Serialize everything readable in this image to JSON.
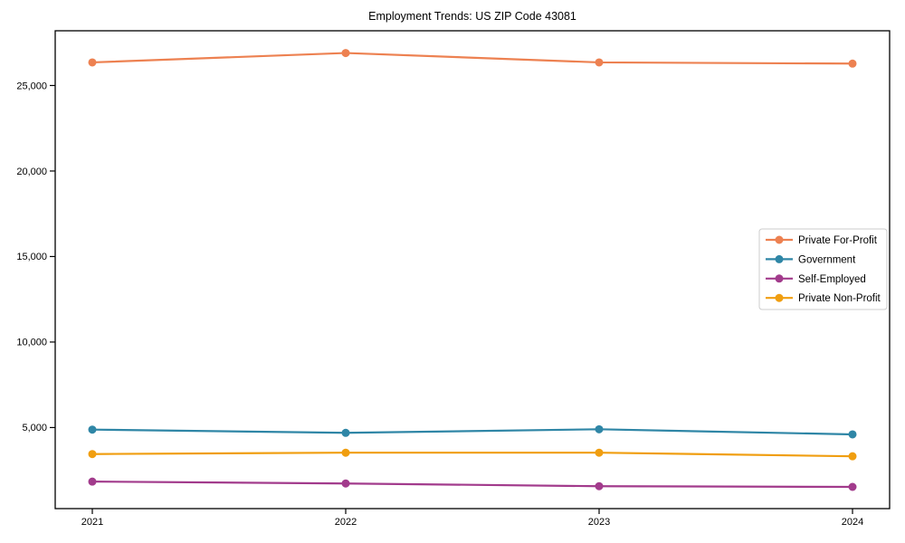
{
  "chart_data": {
    "type": "line",
    "title": "Employment Trends: US ZIP Code 43081",
    "x": [
      "2021",
      "2022",
      "2023",
      "2024"
    ],
    "series": [
      {
        "name": "Private For-Profit",
        "color": "#ED8151",
        "values": [
          26350,
          26900,
          26350,
          26280
        ]
      },
      {
        "name": "Government",
        "color": "#2F86A6",
        "values": [
          4880,
          4690,
          4900,
          4600
        ]
      },
      {
        "name": "Self-Employed",
        "color": "#A23B8C",
        "values": [
          1840,
          1730,
          1570,
          1530
        ]
      },
      {
        "name": "Private Non-Profit",
        "color": "#F09E10",
        "values": [
          3450,
          3530,
          3530,
          3320
        ]
      }
    ],
    "yticks": [
      5000,
      10000,
      15000,
      20000,
      25000
    ],
    "ytick_labels": [
      "5,000",
      "10,000",
      "15,000",
      "20,000",
      "25,000"
    ],
    "ylim": [
      260,
      28200
    ],
    "xlabel": "",
    "ylabel": "",
    "grid": false,
    "legend_position": "center-right",
    "axis_color": "#000000",
    "tick_label_color": "#000000",
    "legend_border_color": "#cccccc",
    "legend_background": "#ffffff",
    "plot_background": "#ffffff"
  }
}
